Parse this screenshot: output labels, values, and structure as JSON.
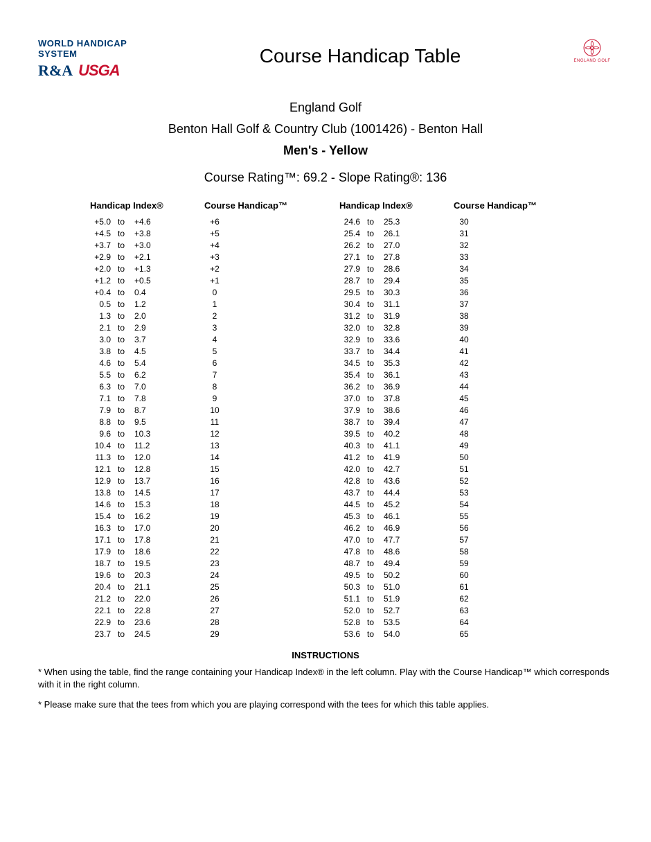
{
  "header": {
    "whs": "WORLD HANDICAP SYSTEM",
    "ra": "R&A",
    "usga": "USGA",
    "title": "Course Handicap Table",
    "england_golf_label": "ENGLAND GOLF"
  },
  "sub": {
    "org": "England Golf",
    "club": "Benton Hall Golf & Country Club (1001426) - Benton Hall",
    "tees": "Men's - Yellow",
    "rating": "Course Rating™: 69.2  - Slope Rating®: 136"
  },
  "columns": {
    "idx_label": "Handicap Index®",
    "ch_label": "Course Handicap™",
    "to": "to"
  },
  "left": [
    {
      "from": "+5.0",
      "to": "+4.6",
      "ch": "+6"
    },
    {
      "from": "+4.5",
      "to": "+3.8",
      "ch": "+5"
    },
    {
      "from": "+3.7",
      "to": "+3.0",
      "ch": "+4"
    },
    {
      "from": "+2.9",
      "to": "+2.1",
      "ch": "+3"
    },
    {
      "from": "+2.0",
      "to": "+1.3",
      "ch": "+2"
    },
    {
      "from": "+1.2",
      "to": "+0.5",
      "ch": "+1"
    },
    {
      "from": "+0.4",
      "to": "0.4",
      "ch": "0"
    },
    {
      "from": "0.5",
      "to": "1.2",
      "ch": "1"
    },
    {
      "from": "1.3",
      "to": "2.0",
      "ch": "2"
    },
    {
      "from": "2.1",
      "to": "2.9",
      "ch": "3"
    },
    {
      "from": "3.0",
      "to": "3.7",
      "ch": "4"
    },
    {
      "from": "3.8",
      "to": "4.5",
      "ch": "5"
    },
    {
      "from": "4.6",
      "to": "5.4",
      "ch": "6"
    },
    {
      "from": "5.5",
      "to": "6.2",
      "ch": "7"
    },
    {
      "from": "6.3",
      "to": "7.0",
      "ch": "8"
    },
    {
      "from": "7.1",
      "to": "7.8",
      "ch": "9"
    },
    {
      "from": "7.9",
      "to": "8.7",
      "ch": "10"
    },
    {
      "from": "8.8",
      "to": "9.5",
      "ch": "11"
    },
    {
      "from": "9.6",
      "to": "10.3",
      "ch": "12"
    },
    {
      "from": "10.4",
      "to": "11.2",
      "ch": "13"
    },
    {
      "from": "11.3",
      "to": "12.0",
      "ch": "14"
    },
    {
      "from": "12.1",
      "to": "12.8",
      "ch": "15"
    },
    {
      "from": "12.9",
      "to": "13.7",
      "ch": "16"
    },
    {
      "from": "13.8",
      "to": "14.5",
      "ch": "17"
    },
    {
      "from": "14.6",
      "to": "15.3",
      "ch": "18"
    },
    {
      "from": "15.4",
      "to": "16.2",
      "ch": "19"
    },
    {
      "from": "16.3",
      "to": "17.0",
      "ch": "20"
    },
    {
      "from": "17.1",
      "to": "17.8",
      "ch": "21"
    },
    {
      "from": "17.9",
      "to": "18.6",
      "ch": "22"
    },
    {
      "from": "18.7",
      "to": "19.5",
      "ch": "23"
    },
    {
      "from": "19.6",
      "to": "20.3",
      "ch": "24"
    },
    {
      "from": "20.4",
      "to": "21.1",
      "ch": "25"
    },
    {
      "from": "21.2",
      "to": "22.0",
      "ch": "26"
    },
    {
      "from": "22.1",
      "to": "22.8",
      "ch": "27"
    },
    {
      "from": "22.9",
      "to": "23.6",
      "ch": "28"
    },
    {
      "from": "23.7",
      "to": "24.5",
      "ch": "29"
    }
  ],
  "right": [
    {
      "from": "24.6",
      "to": "25.3",
      "ch": "30"
    },
    {
      "from": "25.4",
      "to": "26.1",
      "ch": "31"
    },
    {
      "from": "26.2",
      "to": "27.0",
      "ch": "32"
    },
    {
      "from": "27.1",
      "to": "27.8",
      "ch": "33"
    },
    {
      "from": "27.9",
      "to": "28.6",
      "ch": "34"
    },
    {
      "from": "28.7",
      "to": "29.4",
      "ch": "35"
    },
    {
      "from": "29.5",
      "to": "30.3",
      "ch": "36"
    },
    {
      "from": "30.4",
      "to": "31.1",
      "ch": "37"
    },
    {
      "from": "31.2",
      "to": "31.9",
      "ch": "38"
    },
    {
      "from": "32.0",
      "to": "32.8",
      "ch": "39"
    },
    {
      "from": "32.9",
      "to": "33.6",
      "ch": "40"
    },
    {
      "from": "33.7",
      "to": "34.4",
      "ch": "41"
    },
    {
      "from": "34.5",
      "to": "35.3",
      "ch": "42"
    },
    {
      "from": "35.4",
      "to": "36.1",
      "ch": "43"
    },
    {
      "from": "36.2",
      "to": "36.9",
      "ch": "44"
    },
    {
      "from": "37.0",
      "to": "37.8",
      "ch": "45"
    },
    {
      "from": "37.9",
      "to": "38.6",
      "ch": "46"
    },
    {
      "from": "38.7",
      "to": "39.4",
      "ch": "47"
    },
    {
      "from": "39.5",
      "to": "40.2",
      "ch": "48"
    },
    {
      "from": "40.3",
      "to": "41.1",
      "ch": "49"
    },
    {
      "from": "41.2",
      "to": "41.9",
      "ch": "50"
    },
    {
      "from": "42.0",
      "to": "42.7",
      "ch": "51"
    },
    {
      "from": "42.8",
      "to": "43.6",
      "ch": "52"
    },
    {
      "from": "43.7",
      "to": "44.4",
      "ch": "53"
    },
    {
      "from": "44.5",
      "to": "45.2",
      "ch": "54"
    },
    {
      "from": "45.3",
      "to": "46.1",
      "ch": "55"
    },
    {
      "from": "46.2",
      "to": "46.9",
      "ch": "56"
    },
    {
      "from": "47.0",
      "to": "47.7",
      "ch": "57"
    },
    {
      "from": "47.8",
      "to": "48.6",
      "ch": "58"
    },
    {
      "from": "48.7",
      "to": "49.4",
      "ch": "59"
    },
    {
      "from": "49.5",
      "to": "50.2",
      "ch": "60"
    },
    {
      "from": "50.3",
      "to": "51.0",
      "ch": "61"
    },
    {
      "from": "51.1",
      "to": "51.9",
      "ch": "62"
    },
    {
      "from": "52.0",
      "to": "52.7",
      "ch": "63"
    },
    {
      "from": "52.8",
      "to": "53.5",
      "ch": "64"
    },
    {
      "from": "53.6",
      "to": "54.0",
      "ch": "65"
    }
  ],
  "instructions": {
    "title": "INSTRUCTIONS",
    "line1": "* When using the table, find the range containing your Handicap Index® in the left column. Play with the Course Handicap™ which corresponds with it in the right column.",
    "line2": "* Please make sure that the tees from which you are playing correspond with the tees for which this table applies."
  },
  "colors": {
    "whs_blue": "#003a70",
    "usga_red": "#c8102e",
    "eg_red": "#c8102e",
    "text": "#000000",
    "background": "#ffffff"
  }
}
